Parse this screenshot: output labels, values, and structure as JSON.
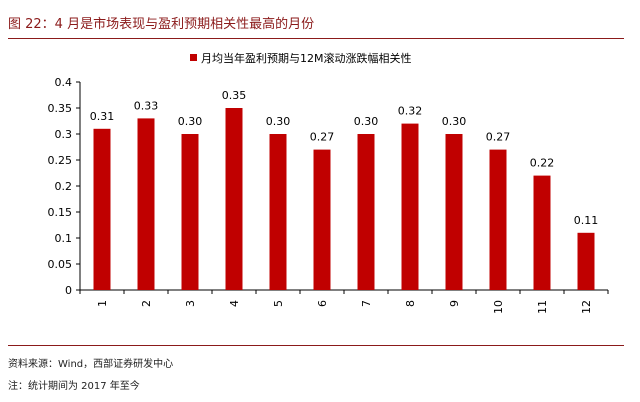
{
  "figure": {
    "title": "图 22：4 月是市场表现与盈利预期相关性最高的月份",
    "source": "资料来源：Wind，西部证券研发中心",
    "note": "注：统计期间为 2017 年至今"
  },
  "colors": {
    "accent": "#8b1a1a",
    "bar": "#c00000"
  },
  "chart_data": {
    "type": "bar",
    "categories": [
      "1",
      "2",
      "3",
      "4",
      "5",
      "6",
      "7",
      "8",
      "9",
      "10",
      "11",
      "12"
    ],
    "series": [
      {
        "name": "月均当年盈利预期与12M滚动涨跌幅相关性",
        "values": [
          0.31,
          0.33,
          0.3,
          0.35,
          0.3,
          0.27,
          0.3,
          0.32,
          0.3,
          0.27,
          0.22,
          0.11
        ]
      }
    ],
    "data_labels": [
      "0.31",
      "0.33",
      "0.30",
      "0.35",
      "0.30",
      "0.27",
      "0.30",
      "0.32",
      "0.30",
      "0.27",
      "0.22",
      "0.11"
    ],
    "ylim": [
      0,
      0.4
    ],
    "yticks": [
      0,
      0.05,
      0.1,
      0.15,
      0.2,
      0.25,
      0.3,
      0.35,
      0.4
    ],
    "ytick_labels": [
      "0",
      "0.05",
      "0.1",
      "0.15",
      "0.2",
      "0.25",
      "0.3",
      "0.35",
      "0.4"
    ],
    "grid": false,
    "legend_position": "top"
  }
}
